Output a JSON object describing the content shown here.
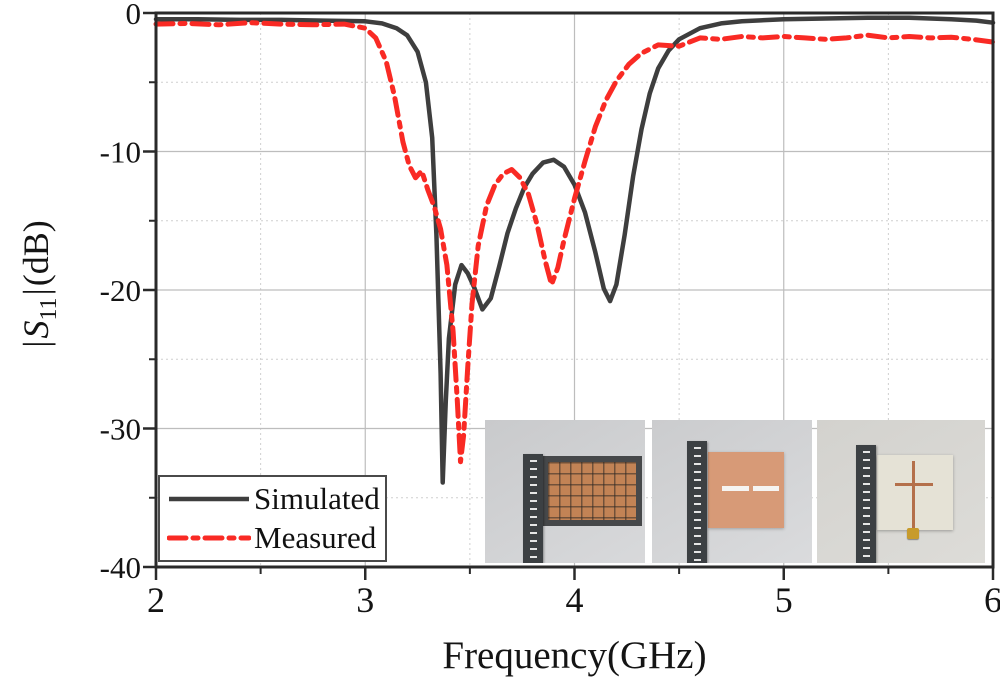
{
  "colors": {
    "axis": "#2a2a2a",
    "tick_label": "#141414",
    "grid_major": "#bdbdbd",
    "grid_minor": "#cfcfcf",
    "photo_bg_1": "#c9cacc",
    "photo_bg_2": "#cbccce",
    "photo_bg_3": "#d3d2ce",
    "ruler_dark": "#3c4043",
    "metasurface_copper": "#c28355",
    "patch_frame": "#46484a",
    "slot_patch_copper": "#d79a77",
    "cross_board": "#e5e2d6",
    "cross_copper": "#b4704b",
    "connector_gold": "#c79b2c"
  },
  "chart_data": {
    "type": "line",
    "title": "",
    "xlabel": "Frequency(GHz)",
    "ylabel": "|S11|(dB)",
    "ylabel_parts": {
      "bar1": "|",
      "s": "S",
      "sub": "11",
      "bar2": "|",
      "unit": "(dB)"
    },
    "xlim": [
      2,
      6
    ],
    "ylim": [
      -40,
      0
    ],
    "x_major_ticks": [
      2,
      3,
      4,
      5,
      6
    ],
    "x_tick_labels": [
      "2",
      "3",
      "4",
      "5",
      "6"
    ],
    "x_minor_ticks": [
      2.5,
      3.5,
      4.5,
      5.5
    ],
    "y_major_ticks": [
      0,
      -10,
      -20,
      -30,
      -40
    ],
    "y_tick_labels": [
      "0",
      "-10",
      "-20",
      "-30",
      "-40"
    ],
    "y_minor_ticks": [
      -5,
      -15,
      -25,
      -35
    ],
    "grid": {
      "major_solid": true,
      "minor_dotted": true
    },
    "legend": {
      "position": "lower-left"
    },
    "series": [
      {
        "name": "Simulated",
        "color": "#3e3e3e",
        "style": "solid",
        "points": [
          [
            2.0,
            -0.45
          ],
          [
            2.2,
            -0.45
          ],
          [
            2.4,
            -0.5
          ],
          [
            2.6,
            -0.5
          ],
          [
            2.8,
            -0.55
          ],
          [
            3.0,
            -0.6
          ],
          [
            3.08,
            -0.75
          ],
          [
            3.15,
            -1.1
          ],
          [
            3.2,
            -1.6
          ],
          [
            3.25,
            -2.8
          ],
          [
            3.29,
            -5
          ],
          [
            3.32,
            -9
          ],
          [
            3.34,
            -16
          ],
          [
            3.36,
            -26
          ],
          [
            3.37,
            -33.9
          ],
          [
            3.385,
            -28
          ],
          [
            3.4,
            -23.5
          ],
          [
            3.43,
            -19.6
          ],
          [
            3.46,
            -18.2
          ],
          [
            3.49,
            -18.8
          ],
          [
            3.52,
            -19.8
          ],
          [
            3.56,
            -21.4
          ],
          [
            3.6,
            -20.6
          ],
          [
            3.64,
            -18.3
          ],
          [
            3.68,
            -15.9
          ],
          [
            3.72,
            -14.1
          ],
          [
            3.76,
            -12.6
          ],
          [
            3.8,
            -11.6
          ],
          [
            3.85,
            -10.8
          ],
          [
            3.9,
            -10.6
          ],
          [
            3.95,
            -11.1
          ],
          [
            4.0,
            -12.4
          ],
          [
            4.05,
            -14.4
          ],
          [
            4.1,
            -17.3
          ],
          [
            4.14,
            -19.9
          ],
          [
            4.17,
            -20.8
          ],
          [
            4.2,
            -19.6
          ],
          [
            4.24,
            -16
          ],
          [
            4.28,
            -11.8
          ],
          [
            4.32,
            -8.4
          ],
          [
            4.36,
            -5.8
          ],
          [
            4.4,
            -4.0
          ],
          [
            4.45,
            -2.7
          ],
          [
            4.5,
            -1.9
          ],
          [
            4.6,
            -1.1
          ],
          [
            4.7,
            -0.75
          ],
          [
            4.8,
            -0.6
          ],
          [
            5.0,
            -0.45
          ],
          [
            5.2,
            -0.4
          ],
          [
            5.4,
            -0.35
          ],
          [
            5.6,
            -0.35
          ],
          [
            5.8,
            -0.45
          ],
          [
            5.92,
            -0.55
          ],
          [
            6.0,
            -0.7
          ]
        ]
      },
      {
        "name": "Measured",
        "color": "#f92a24",
        "style": "dash-dot",
        "points": [
          [
            2.0,
            -0.8
          ],
          [
            2.15,
            -0.75
          ],
          [
            2.3,
            -0.85
          ],
          [
            2.45,
            -0.7
          ],
          [
            2.6,
            -0.8
          ],
          [
            2.75,
            -0.85
          ],
          [
            2.9,
            -0.8
          ],
          [
            3.0,
            -1.1
          ],
          [
            3.05,
            -1.8
          ],
          [
            3.1,
            -3.5
          ],
          [
            3.14,
            -6
          ],
          [
            3.18,
            -9.3
          ],
          [
            3.21,
            -11
          ],
          [
            3.24,
            -11.9
          ],
          [
            3.27,
            -11.4
          ],
          [
            3.3,
            -12.8
          ],
          [
            3.33,
            -14
          ],
          [
            3.36,
            -15.6
          ],
          [
            3.39,
            -18.2
          ],
          [
            3.42,
            -23
          ],
          [
            3.44,
            -28
          ],
          [
            3.455,
            -32.4
          ],
          [
            3.47,
            -30.5
          ],
          [
            3.49,
            -25.5
          ],
          [
            3.51,
            -21
          ],
          [
            3.54,
            -16.8
          ],
          [
            3.58,
            -13.9
          ],
          [
            3.62,
            -12.4
          ],
          [
            3.66,
            -11.6
          ],
          [
            3.7,
            -11.3
          ],
          [
            3.74,
            -11.9
          ],
          [
            3.78,
            -13.1
          ],
          [
            3.82,
            -15.2
          ],
          [
            3.86,
            -17.9
          ],
          [
            3.89,
            -19.6
          ],
          [
            3.92,
            -18.4
          ],
          [
            3.95,
            -16.4
          ],
          [
            4.0,
            -13.4
          ],
          [
            4.05,
            -10.7
          ],
          [
            4.1,
            -8.2
          ],
          [
            4.15,
            -6.3
          ],
          [
            4.2,
            -4.9
          ],
          [
            4.26,
            -3.7
          ],
          [
            4.32,
            -2.9
          ],
          [
            4.4,
            -2.3
          ],
          [
            4.5,
            -2.4
          ],
          [
            4.6,
            -1.8
          ],
          [
            4.7,
            -1.9
          ],
          [
            4.8,
            -1.7
          ],
          [
            4.9,
            -1.8
          ],
          [
            5.0,
            -1.7
          ],
          [
            5.1,
            -1.8
          ],
          [
            5.2,
            -1.9
          ],
          [
            5.3,
            -1.8
          ],
          [
            5.4,
            -1.6
          ],
          [
            5.5,
            -1.8
          ],
          [
            5.6,
            -1.7
          ],
          [
            5.7,
            -1.8
          ],
          [
            5.8,
            -1.75
          ],
          [
            5.9,
            -1.9
          ],
          [
            6.0,
            -2.1
          ]
        ]
      }
    ]
  },
  "insets": {
    "description": "three antenna prototype photos, each with a dark ruler",
    "photos": [
      {
        "name": "metasurface-prototype"
      },
      {
        "name": "slot-patch-prototype"
      },
      {
        "name": "cross-monopole-prototype"
      }
    ]
  }
}
